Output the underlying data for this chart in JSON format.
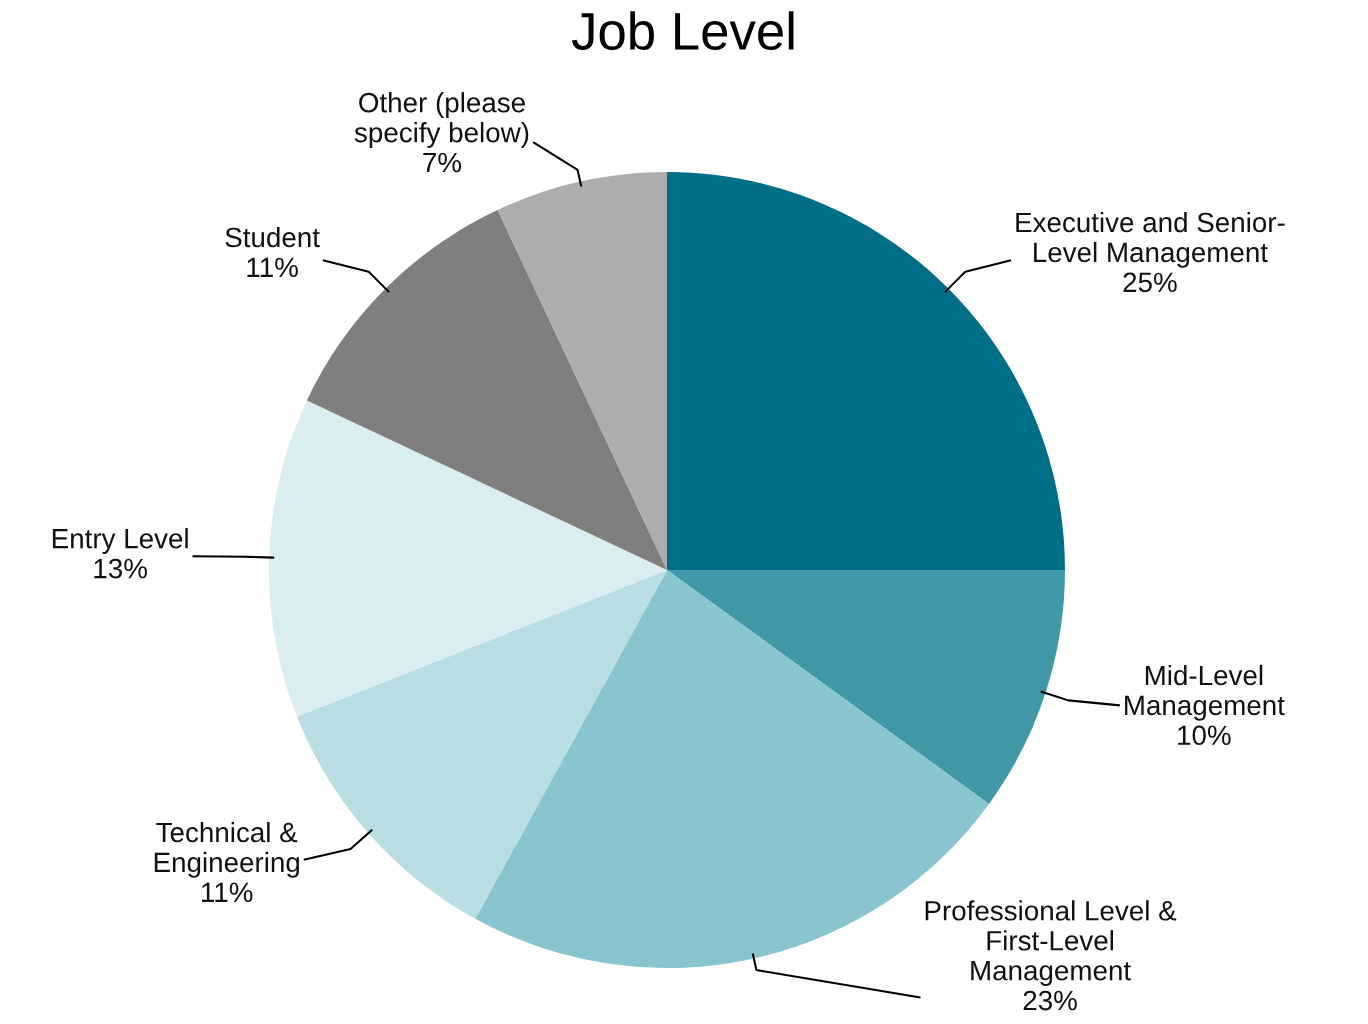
{
  "chart_data": {
    "type": "pie",
    "title": "Job Level",
    "categories": [
      "Executive and Senior-\nLevel Management",
      "Mid-Level\nManagement",
      "Professional Level &\nFirst-Level\nManagement",
      "Technical &\nEngineering",
      "Entry Level",
      "Student",
      "Other (please\nspecify below)"
    ],
    "values": [
      25,
      10,
      23,
      11,
      13,
      11,
      7
    ],
    "value_labels": [
      "25%",
      "10%",
      "23%",
      "11%",
      "13%",
      "11%",
      "7%"
    ],
    "colors": [
      "#006e87",
      "#4199a8",
      "#88c5ce",
      "#b8dee3",
      "#daedf0",
      "#7f7f7f",
      "#adadad"
    ]
  }
}
